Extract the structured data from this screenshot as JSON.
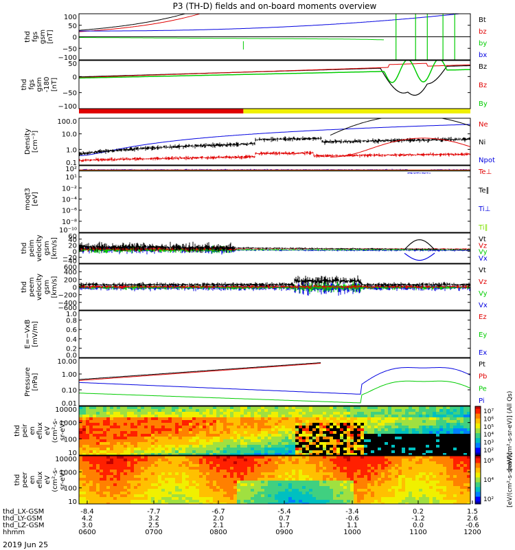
{
  "title": "P3 (TH-D) fields and on-board moments overview",
  "date_label": "2019 Jun 25",
  "colors": {
    "black": "#000000",
    "red": "#e00000",
    "green": "#00cc00",
    "blue": "#0000e0",
    "yellow": "#f0f000",
    "lime": "#80e000"
  },
  "chart_data": [
    {
      "type": "line",
      "ylabel": [
        "thd",
        "fgs",
        "gsm",
        "[nT]"
      ],
      "ylim": [
        -100,
        100
      ],
      "yticks": [
        "100",
        "50",
        "0",
        "−50",
        "−100"
      ],
      "legend": [
        {
          "name": "Bt",
          "color": "black"
        },
        {
          "name": "bz",
          "color": "red"
        },
        {
          "name": "by",
          "color": "green"
        },
        {
          "name": "bx",
          "color": "blue"
        }
      ]
    },
    {
      "type": "line",
      "ylabel": [
        "thd",
        "fgs",
        "gsm",
        "-180",
        "[nT]"
      ],
      "ylim": [
        -120,
        50
      ],
      "yticks": [
        "50",
        "0",
        "−50",
        "−100"
      ],
      "legend": [
        {
          "name": "Bz",
          "color": "black"
        },
        {
          "name": "Bz",
          "color": "red"
        },
        {
          "name": "By",
          "color": "green"
        }
      ]
    },
    {
      "type": "line",
      "ylabel": [
        "Density",
        "[cm⁻³]"
      ],
      "log": true,
      "yticks": [
        "100.0",
        "10.0",
        "1.0",
        "0.1"
      ],
      "legend": [
        {
          "name": "Ne",
          "color": "red"
        },
        {
          "name": "Ni",
          "color": "black"
        },
        {
          "name": "Npot",
          "color": "blue"
        }
      ]
    },
    {
      "type": "line",
      "ylabel": [
        "moqt3",
        "[eV]"
      ],
      "log": true,
      "yticks": [
        "10²",
        "10¹",
        "10⁻²",
        "10⁻⁴",
        "10⁻⁶",
        "10⁻⁸",
        "10⁻¹⁰"
      ],
      "legend": [
        {
          "name": "Te⊥",
          "color": "red"
        },
        {
          "name": "Te∥",
          "color": "black"
        },
        {
          "name": "Ti⊥",
          "color": "blue"
        },
        {
          "name": "Ti∥",
          "color": "lime"
        }
      ]
    },
    {
      "type": "line",
      "ylabel": [
        "thd",
        "peim",
        "velocity",
        "gsm",
        "[km/s]"
      ],
      "ylim": [
        -40,
        60
      ],
      "yticks": [
        "60",
        "40",
        "20",
        "0",
        "−20",
        "−40"
      ],
      "legend": [
        {
          "name": "Vt",
          "color": "black"
        },
        {
          "name": "Vz",
          "color": "red"
        },
        {
          "name": "Vy",
          "color": "green"
        },
        {
          "name": "Vx",
          "color": "blue"
        }
      ]
    },
    {
      "type": "line",
      "ylabel": [
        "thd",
        "peem",
        "velocity",
        "gsm",
        "[km/s]"
      ],
      "ylim": [
        -600,
        600
      ],
      "yticks": [
        "600",
        "400",
        "200",
        "0",
        "−200",
        "−400",
        "−600"
      ],
      "legend": [
        {
          "name": "Vt",
          "color": "black"
        },
        {
          "name": "Vz",
          "color": "red"
        },
        {
          "name": "Vy",
          "color": "green"
        },
        {
          "name": "Vx",
          "color": "blue"
        }
      ]
    },
    {
      "type": "line",
      "ylabel": [
        "E=−VxB",
        "[mV/m]"
      ],
      "ylim": [
        0,
        1
      ],
      "yticks": [
        "1.0",
        "0.8",
        "0.6",
        "0.4",
        "0.2",
        "0.0"
      ],
      "legend": [
        {
          "name": "Ez",
          "color": "red"
        },
        {
          "name": "Ey",
          "color": "green"
        },
        {
          "name": "Ex",
          "color": "blue"
        }
      ]
    },
    {
      "type": "line",
      "ylabel": [
        "Pressure",
        "[nPa]"
      ],
      "log": true,
      "yticks": [
        "10.00",
        "1.00",
        "0.10",
        "0.01"
      ],
      "legend": [
        {
          "name": "Pt",
          "color": "black"
        },
        {
          "name": "Pb",
          "color": "red"
        },
        {
          "name": "Pe",
          "color": "green"
        },
        {
          "name": "Pi",
          "color": "blue"
        }
      ]
    },
    {
      "type": "heatmap",
      "ylabel": [
        "thd",
        "peir",
        "en",
        "eflux",
        "eV",
        "(cm²-s-",
        "sr-eV)"
      ],
      "yticks": [
        "10000",
        "1000",
        "100",
        "10"
      ],
      "colorbar": {
        "ticks": [
          "10⁷",
          "10⁶",
          "10⁵",
          "10⁴",
          "10³",
          "10²"
        ],
        "label": "[eV/(cm²-s-sr-eV)] (All Qs)"
      }
    },
    {
      "type": "heatmap",
      "ylabel": [
        "thd",
        "peer",
        "en",
        "eflux",
        "eV",
        "(cm²-s-",
        "sr-eV)"
      ],
      "yticks": [
        "10000",
        "1000",
        "100",
        "10"
      ],
      "colorbar": {
        "ticks": [
          "10⁶",
          "10⁴",
          "10²"
        ],
        "label": "[eV/(cm²-s-sr-eV)]"
      }
    }
  ],
  "xaxis": {
    "rows": [
      {
        "label": "thd_LX-GSM",
        "values": [
          "-8.4",
          "-7.7",
          "-6.7",
          "-5.4",
          "-3.4",
          "0.2",
          "1.5"
        ]
      },
      {
        "label": "thd_LY-GSM",
        "values": [
          "4.2",
          "3.2",
          "2.0",
          "0.7",
          "-0.6",
          "-1.2",
          "2.6"
        ]
      },
      {
        "label": "thd_LZ-GSM",
        "values": [
          "3.0",
          "2.5",
          "2.1",
          "1.7",
          "1.1",
          "0.0",
          "-0.6"
        ]
      },
      {
        "label": "hhmm",
        "values": [
          "0600",
          "0700",
          "0800",
          "0900",
          "1000",
          "1100",
          "1200"
        ]
      }
    ]
  }
}
